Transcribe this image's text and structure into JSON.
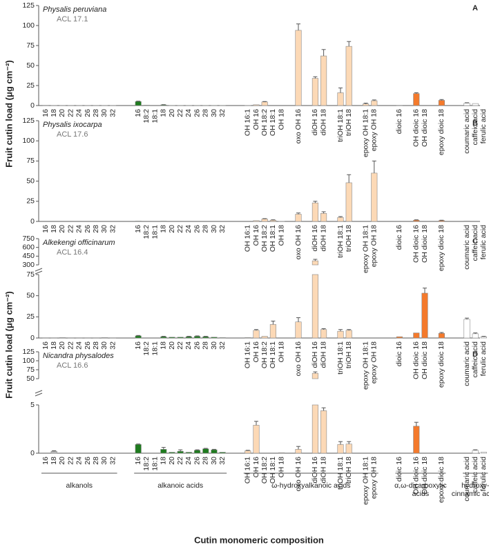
{
  "chart_data": {
    "type": "bar",
    "ylabel": "Fruit cutin load (μg cm⁻²)",
    "xlabel": "Cutin monomeric composition",
    "groups": [
      {
        "name": [
          "alkanols"
        ],
        "color": "#bdbdbd",
        "categories": [
          "16",
          "18",
          "20",
          "22",
          "24",
          "26",
          "28",
          "30",
          "32"
        ]
      },
      {
        "name": [
          "alkanoic acids"
        ],
        "color": "#1e7b1e",
        "categories": [
          "16",
          "18:2",
          "18:1",
          "18",
          "20",
          "22",
          "24",
          "26",
          "28",
          "30",
          "32"
        ]
      },
      {
        "name": [
          "ω-hydroxyalkanoic acids"
        ],
        "color": "#fcd9b6",
        "categories": [
          "OH 16:1",
          "OH 16",
          "OH 18:2",
          "OH 18:1",
          "OH 18",
          null,
          "oxo OH 16",
          null,
          "diOH 16",
          "diOH 18",
          null,
          "triOH 18:1",
          "triOH 18",
          null,
          "epoxy OH 18:1",
          "epoxy OH 18"
        ]
      },
      {
        "name": [
          "α,ω-dicarboxylic",
          "acids"
        ],
        "color": "#f47a2c",
        "categories": [
          "dioic 16",
          null,
          "OH dioic 16",
          "OH dioic 18",
          null,
          "epoxy dioic 18"
        ]
      },
      {
        "name": [
          "hydroxy-",
          "cinnamic acids"
        ],
        "color": "#ffffff",
        "categories": [
          "coumaric acid",
          "caffeic acid",
          "ferulic acid"
        ]
      }
    ],
    "panels": [
      {
        "label": "A",
        "title": "Physalis peruviana",
        "subtitle": "ACL 17.1",
        "axes": [
          {
            "ylim": [
              0,
              125
            ],
            "yticks": [
              0,
              25,
              50,
              75,
              100,
              125
            ]
          }
        ],
        "values": [
          [
            0.3,
            0.2,
            0.1,
            0.1,
            0.1,
            0.1,
            0.1,
            0.1,
            0.1
          ],
          [
            5,
            0.5,
            0,
            0.8,
            0.1,
            0.1,
            0.1,
            0.1,
            0.1,
            0.1,
            0.1
          ],
          [
            0.2,
            1,
            4.5,
            0,
            0,
            null,
            94,
            null,
            34,
            62,
            null,
            16,
            74,
            null,
            2,
            6
          ],
          [
            0.3,
            null,
            15,
            0,
            null,
            6.5
          ],
          [
            3,
            2.5,
            0
          ]
        ],
        "errors": [
          [
            null,
            null,
            null,
            null,
            null,
            null,
            null,
            null,
            null
          ],
          [
            0.5,
            null,
            null,
            0.3,
            null,
            null,
            null,
            null,
            null,
            null,
            null
          ],
          [
            null,
            null,
            0.5,
            null,
            null,
            null,
            8,
            null,
            2,
            8,
            null,
            6,
            6,
            null,
            1,
            1
          ],
          [
            null,
            null,
            1,
            null,
            null,
            1
          ],
          [
            0.5,
            null,
            null
          ]
        ]
      },
      {
        "label": "B",
        "title": "Physalis ixocarpa",
        "subtitle": "ACL 17.6",
        "axes": [
          {
            "ylim": [
              0,
              125
            ],
            "yticks": [
              0,
              25,
              50,
              75,
              100,
              125
            ]
          }
        ],
        "values": [
          [
            0,
            0,
            0,
            0,
            0,
            0,
            0,
            0,
            0
          ],
          [
            0.5,
            0,
            0,
            0.5,
            0,
            0,
            0,
            0,
            0,
            0,
            0
          ],
          [
            0,
            1,
            3,
            1.5,
            0.2,
            null,
            9,
            null,
            23,
            10,
            null,
            5,
            48,
            null,
            0,
            60
          ],
          [
            0,
            null,
            1.5,
            0,
            null,
            1
          ],
          [
            0.5,
            0,
            0
          ]
        ],
        "errors": [
          [
            null,
            null,
            null,
            null,
            null,
            null,
            null,
            null,
            null
          ],
          [
            null,
            null,
            null,
            null,
            null,
            null,
            null,
            null,
            null,
            null,
            null
          ],
          [
            null,
            null,
            0.5,
            0.5,
            null,
            null,
            1.5,
            null,
            2,
            2,
            null,
            1,
            10,
            null,
            null,
            15
          ],
          [
            null,
            null,
            0.5,
            null,
            null,
            0.5
          ],
          [
            null,
            null,
            null
          ]
        ]
      },
      {
        "label": "C",
        "title": "Alkekengi officinarum",
        "subtitle": "ACL 16.4",
        "axes": [
          {
            "ylim": [
              0,
              75
            ],
            "yticks": [
              0,
              25,
              50,
              75
            ]
          },
          {
            "ylim": [
              300,
              750
            ],
            "yticks": [
              300,
              450,
              600,
              750
            ]
          }
        ],
        "values": [
          [
            0.3,
            0.3,
            0.5,
            0.3,
            0.3,
            0.3,
            0.3,
            0.5,
            0.3
          ],
          [
            2.5,
            0,
            0,
            1.5,
            1,
            1,
            1.5,
            2,
            1.5,
            1,
            0.5
          ],
          [
            0.5,
            9,
            2,
            16,
            0,
            null,
            19,
            null,
            370,
            10,
            null,
            8,
            9,
            null,
            0,
            0
          ],
          [
            1.5,
            null,
            6,
            53,
            null,
            5.5
          ],
          [
            22,
            5,
            1.5
          ]
        ],
        "errors": [
          [
            null,
            null,
            null,
            null,
            null,
            null,
            null,
            null,
            null
          ],
          [
            0.5,
            null,
            null,
            0.5,
            null,
            null,
            0.5,
            0.5,
            0.5,
            null,
            null
          ],
          [
            null,
            1,
            null,
            4,
            null,
            null,
            5,
            null,
            25,
            1,
            null,
            2,
            1,
            null,
            null,
            null
          ],
          [
            null,
            null,
            null,
            6,
            null,
            1
          ],
          [
            1.5,
            1,
            0.5
          ]
        ]
      },
      {
        "label": "D",
        "title": "Nicandra physalodes",
        "subtitle": "ACL 16.6",
        "axes": [
          {
            "ylim": [
              0,
              5
            ],
            "yticks": [
              0,
              5
            ]
          },
          {
            "ylim": [
              50,
              125
            ],
            "yticks": [
              50,
              75,
              100,
              125
            ]
          }
        ],
        "values": [
          [
            0,
            0.2,
            0,
            0,
            0,
            0,
            0,
            0,
            0
          ],
          [
            0.9,
            0,
            0,
            0.4,
            0.1,
            0.2,
            0.1,
            0.3,
            0.45,
            0.35,
            0.1
          ],
          [
            0.25,
            2.9,
            0,
            0,
            0.05,
            null,
            0.4,
            null,
            65,
            4.4,
            null,
            0.9,
            0.95,
            null,
            0,
            0
          ],
          [
            0,
            null,
            2.8,
            0,
            null,
            0
          ],
          [
            0,
            0.3,
            0.1
          ]
        ],
        "errors": [
          [
            null,
            0.05,
            null,
            null,
            null,
            null,
            null,
            null,
            null
          ],
          [
            0.05,
            null,
            null,
            0.2,
            null,
            0.15,
            null,
            0.05,
            0.05,
            0.05,
            null
          ],
          [
            0.05,
            0.4,
            null,
            null,
            null,
            null,
            0.3,
            null,
            4,
            0.3,
            null,
            0.3,
            0.25,
            null,
            null,
            null
          ],
          [
            null,
            null,
            0.4,
            null,
            null,
            null
          ],
          [
            null,
            0.05,
            null
          ]
        ]
      }
    ]
  }
}
